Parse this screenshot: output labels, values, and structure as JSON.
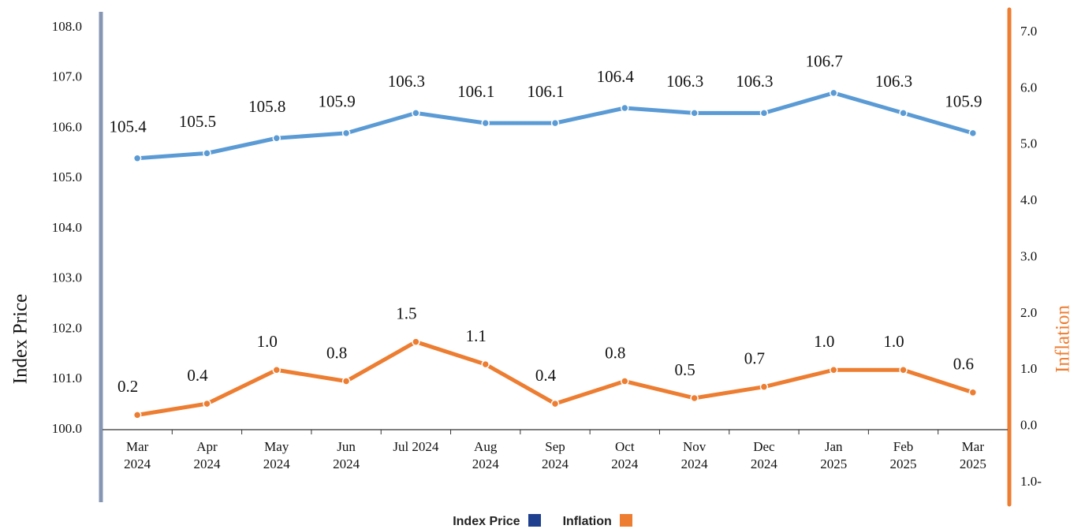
{
  "chart_data": {
    "type": "line",
    "categories": [
      "Mar 2024",
      "Apr 2024",
      "May 2024",
      "Jun 2024",
      "Jul 2024",
      "Aug 2024",
      "Sep 2024",
      "Oct 2024",
      "Nov 2024",
      "Dec 2024",
      "Jan 2025",
      "Feb 2025",
      "Mar 2025"
    ],
    "series": [
      {
        "name": "Index Price",
        "color": "#5b9bd5",
        "values": [
          105.4,
          105.5,
          105.8,
          105.9,
          106.3,
          106.1,
          106.1,
          106.4,
          106.3,
          106.3,
          106.7,
          106.3,
          105.9
        ],
        "value_labels": [
          "105.4",
          "105.5",
          "105.8",
          "105.9",
          "106.3",
          "106.1",
          "106.1",
          "106.4",
          "106.3",
          "106.3",
          "106.7",
          "106.3",
          "105.9"
        ]
      },
      {
        "name": "Inflation",
        "color": "#ed7d31",
        "axis": "y2",
        "values": [
          0.2,
          0.4,
          1,
          0.8,
          1.5,
          1.1,
          0.4,
          0.8,
          0.5,
          0.7,
          1,
          1,
          0.6
        ],
        "value_labels": [
          "0.2",
          "0.4",
          "1.0",
          "0.8",
          "1.5",
          "1.1",
          "0.4",
          "0.8",
          "0.5",
          "0.7",
          "1.0",
          "1.0",
          "0.6"
        ]
      }
    ],
    "y_label": "Index Price",
    "y2_label": "Inflation",
    "ylim": [
      100,
      108
    ],
    "yticks": [
      {
        "value": 100,
        "label": "100.0"
      },
      {
        "value": 101,
        "label": "101.0"
      },
      {
        "value": 102,
        "label": "102.0"
      },
      {
        "value": 103,
        "label": "103.0"
      },
      {
        "value": 104,
        "label": "104.0"
      },
      {
        "value": 105,
        "label": "105.0"
      },
      {
        "value": 106,
        "label": "106.0"
      },
      {
        "value": 107,
        "label": "107.0"
      },
      {
        "value": 108,
        "label": "108.0"
      }
    ],
    "y2lim": [
      -1,
      7
    ],
    "y2ticks": [
      {
        "value": -1,
        "label": "1.0-"
      },
      {
        "value": 0,
        "label": "0.0"
      },
      {
        "value": 1,
        "label": "1.0"
      },
      {
        "value": 2,
        "label": "2.0"
      },
      {
        "value": 3,
        "label": "3.0"
      },
      {
        "value": 4,
        "label": "4.0"
      },
      {
        "value": 5,
        "label": "5.0"
      },
      {
        "value": 6,
        "label": "6.0"
      },
      {
        "value": 7,
        "label": "7.0"
      }
    ],
    "legend": "bottom",
    "grid": false
  }
}
